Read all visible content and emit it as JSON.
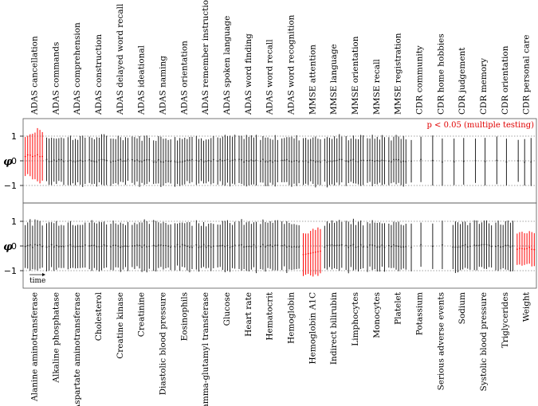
{
  "chart_data": [
    {
      "type": "errorbar",
      "panel": "top",
      "ylabel": "φ",
      "yticks": [
        1,
        0,
        -1
      ],
      "ylim": [
        -1.4,
        1.45
      ],
      "grid": "dotted horizontal at -1, 0, 1",
      "annotation": "p < 0.05 (multiple testing)",
      "categories": [
        "ADAS cancellation",
        "ADAS commands",
        "ADAS comprehension",
        "ADAS construction",
        "ADAS delayed word recall",
        "ADAS ideational",
        "ADAS naming",
        "ADAS orientation",
        "ADAS remember instructions",
        "ADAS spoken language",
        "ADAS word finding",
        "ADAS word recall",
        "ADAS word recognition",
        "MMSE attention",
        "MMSE language",
        "MMSE orientation",
        "MMSE recall",
        "MMSE registration",
        "CDR community",
        "CDR home hobbies",
        "CDR judgement",
        "CDR memory",
        "CDR orientation",
        "CDR personal care"
      ],
      "bars_per_category": {
        "default": 8,
        "CDR community": 2,
        "CDR home hobbies": 2,
        "CDR judgement": 2,
        "CDR memory": 2,
        "CDR orientation": 2,
        "CDR personal care": 3
      },
      "interval_half_width_approx": 0.95,
      "significant": [
        "ADAS cancellation"
      ],
      "significant_color": "#ff0000"
    },
    {
      "type": "errorbar",
      "panel": "bottom",
      "ylabel": "φ",
      "yticks": [
        1,
        0,
        -1
      ],
      "ylim": [
        -1.4,
        1.45
      ],
      "grid": "dotted horizontal at -1, 0, 1",
      "xaxis_note": "time",
      "categories": [
        "Alanine aminotransferase",
        "Alkaline phosphatase",
        "Aspartate aminotransferase",
        "Cholesterol",
        "Creatine kinase",
        "Creatinine",
        "Diastolic blood pressure",
        "Eosinophils",
        "Gamma-glutamyl transferase",
        "Glucose",
        "Heart rate",
        "Hematocrit",
        "Hemoglobin",
        "Hemoglobin A1C",
        "Indirect bilirubin",
        "Limphocytes",
        "Monocytes",
        "Platelet",
        "Potassium",
        "Serious adverse events",
        "Sodium",
        "Systolic blood pressure",
        "Triglycerides",
        "Weight"
      ],
      "bars_per_category": {
        "default": 8,
        "Potassium": 2,
        "Serious adverse events": 2
      },
      "interval_half_width_approx": 0.95,
      "significant": [
        "Hemoglobin A1C",
        "Weight"
      ],
      "significant_color": "#ff0000"
    }
  ]
}
